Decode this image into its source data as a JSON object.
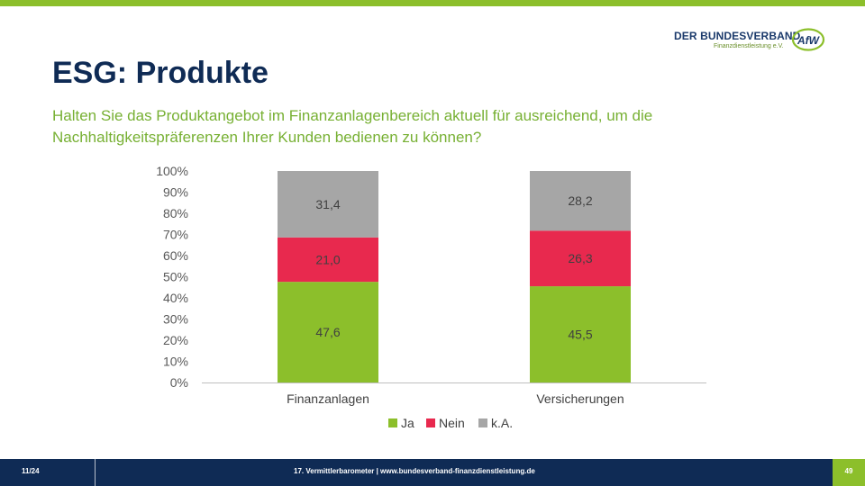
{
  "colors": {
    "accent_green": "#8cbf2b",
    "navy": "#0f2b55",
    "question_green": "#77b033"
  },
  "logo": {
    "name": "DER BUNDESVERBAND",
    "subtitle": "Finanzdienstleistung e.V.",
    "mark": "AfW"
  },
  "title": "ESG: Produkte",
  "question": "Halten Sie das Produktangebot im Finanzanlagenbereich aktuell für ausreichend, um die Nachhaltigkeitspräferenzen Ihrer Kunden bedienen zu können?",
  "chart_data": {
    "type": "bar",
    "stacked": true,
    "percent_stacked": true,
    "categories": [
      "Finanzanlagen",
      "Versicherungen"
    ],
    "series": [
      {
        "name": "Ja",
        "values": [
          47.6,
          45.5
        ],
        "labels": [
          "47,6",
          "45,5"
        ],
        "color": "#8cbf2b"
      },
      {
        "name": "Nein",
        "values": [
          21.0,
          26.3
        ],
        "labels": [
          "21,0",
          "26,3"
        ],
        "color": "#e8294e"
      },
      {
        "name": "k.A.",
        "values": [
          31.4,
          28.2
        ],
        "labels": [
          "31,4",
          "28,2"
        ],
        "color": "#a6a6a6"
      }
    ],
    "ylim": [
      0,
      100
    ],
    "yticks": [
      "0%",
      "10%",
      "20%",
      "30%",
      "40%",
      "50%",
      "60%",
      "70%",
      "80%",
      "90%",
      "100%"
    ],
    "legend_position": "bottom",
    "grid": false,
    "xlabel": "",
    "ylabel": ""
  },
  "footer": {
    "slide_counter": "11/24",
    "caption": "17. Vermittlerbarometer | www.bundesverband-finanzdienstleistung.de",
    "page_number": "49"
  }
}
